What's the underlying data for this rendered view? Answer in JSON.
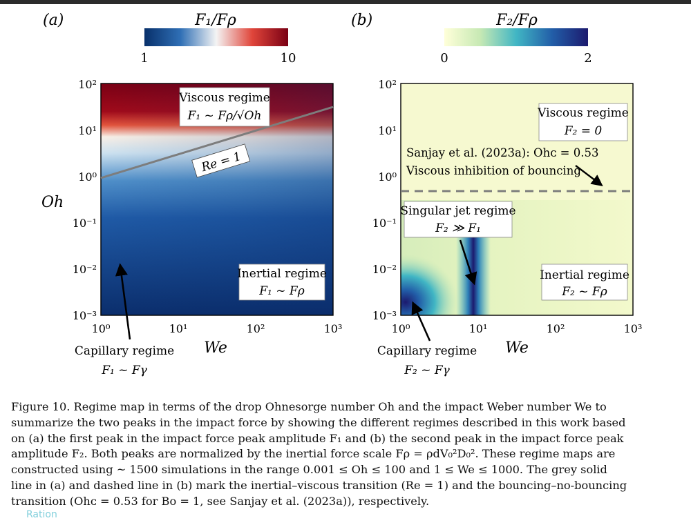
{
  "figure": {
    "panel_a": {
      "tag": "(a)",
      "colorbar_title": "F₁/Fρ",
      "colorbar_min": "1",
      "colorbar_max": "10",
      "ylabel": "Oh",
      "xlabel": "We",
      "x_ticks": [
        "10⁰",
        "10¹",
        "10²",
        "10³"
      ],
      "y_ticks": [
        "10²",
        "10¹",
        "10⁰",
        "10⁻¹",
        "10⁻²",
        "10⁻³"
      ],
      "box_viscous_title": "Viscous regime",
      "box_viscous_formula": "F₁ ~ Fρ/√Oh",
      "re_label": "Re = 1",
      "box_inertial_title": "Inertial regime",
      "box_inertial_formula": "F₁ ~ Fρ",
      "capillary_title": "Capillary regime",
      "capillary_formula": "F₁ ~ Fγ"
    },
    "panel_b": {
      "tag": "(b)",
      "colorbar_title": "F₂/Fρ",
      "colorbar_min": "0",
      "colorbar_max": "2",
      "xlabel": "We",
      "x_ticks": [
        "10⁰",
        "10¹",
        "10²",
        "10³"
      ],
      "y_ticks": [
        "10²",
        "10¹",
        "10⁰",
        "10⁻¹",
        "10⁻²",
        "10⁻³"
      ],
      "box_viscous_title": "Viscous regime",
      "box_viscous_formula": "F₂ = 0",
      "sanjay_line1": "Sanjay et al. (2023a): Ohᴄ = 0.53",
      "sanjay_line2": "Viscous inhibition of bouncing",
      "box_jet_title": "Singular jet regime",
      "box_jet_formula": "F₂ ≫ F₁",
      "box_inertial_title": "Inertial regime",
      "box_inertial_formula": "F₂ ~ Fρ",
      "capillary_title": "Capillary regime",
      "capillary_formula": "F₂ ~ Fγ"
    },
    "colors": {
      "blue_dark": "#0a2a6b",
      "red_dark": "#7a0014",
      "yellow_light": "#f7f9d2",
      "navy": "#1c1a6e"
    }
  },
  "caption": {
    "line1": "Figure 10. Regime map in terms of the drop Ohnesorge number Oh and the impact Weber number We to",
    "line2": "summarize the two peaks in the impact force by showing the different regimes described in this work based",
    "line3": "on (a) the first peak in the impact force peak amplitude F₁ and (b) the second peak in the impact force peak",
    "line4": "amplitude F₂. Both peaks are normalized by the inertial force scale Fρ = ρdV₀²D₀². These regime maps are",
    "line5": "constructed using ~ 1500 simulations in the range 0.001 ≤ Oh ≤ 100 and 1 ≤ We ≤ 1000. The grey solid",
    "line6": "line in (a) and dashed line in (b) mark the inertial–viscous transition (Re = 1) and the bouncing–no-bouncing",
    "line7": "transition (Ohᴄ = 0.53 for Bo = 1, see Sanjay et al. (2023a)), respectively."
  },
  "watermark": "Ration"
}
